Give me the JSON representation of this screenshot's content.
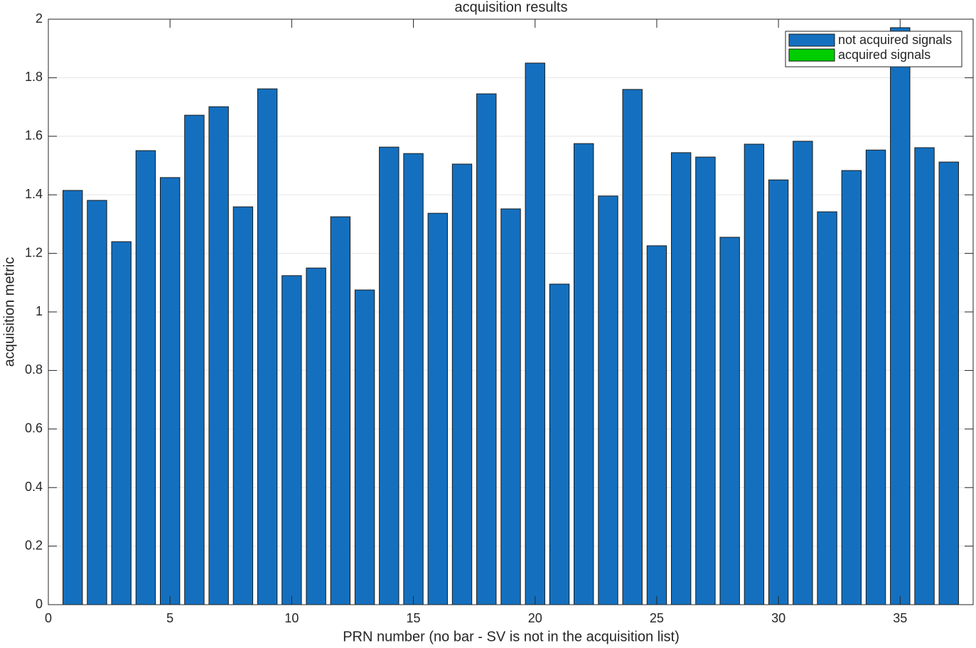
{
  "chart_data": {
    "type": "bar",
    "title": "acquisition results",
    "x_label": "PRN number (no bar - SV is not in the acquisition list)",
    "y_label": "acquisition metric",
    "x": [
      1,
      2,
      3,
      4,
      5,
      6,
      7,
      8,
      9,
      10,
      11,
      12,
      13,
      14,
      15,
      16,
      17,
      18,
      19,
      20,
      21,
      22,
      23,
      24,
      25,
      26,
      27,
      28,
      29,
      30,
      31,
      32,
      33,
      34,
      35,
      36,
      37
    ],
    "series": [
      {
        "name": "not acquired signals",
        "color": "#1470bf",
        "values": [
          1.415,
          1.381,
          1.24,
          1.551,
          1.459,
          1.672,
          1.701,
          1.359,
          1.762,
          1.124,
          1.15,
          1.325,
          1.075,
          1.563,
          1.541,
          1.337,
          1.505,
          1.745,
          1.352,
          1.85,
          1.095,
          1.575,
          1.396,
          1.76,
          1.226,
          1.544,
          1.529,
          1.255,
          1.573,
          1.451,
          1.583,
          1.342,
          1.483,
          1.553,
          1.971,
          1.561,
          1.512
        ]
      },
      {
        "name": "acquired signals",
        "color": "#00cc00",
        "values": [
          null,
          null,
          null,
          null,
          null,
          null,
          null,
          null,
          null,
          null,
          null,
          null,
          null,
          null,
          null,
          null,
          null,
          null,
          null,
          null,
          null,
          null,
          null,
          null,
          null,
          null,
          null,
          null,
          null,
          null,
          null,
          null,
          null,
          null,
          null,
          null,
          null
        ]
      }
    ],
    "xlim": [
      0,
      38
    ],
    "xticks": [
      0,
      5,
      10,
      15,
      20,
      25,
      30,
      35
    ],
    "ylim": [
      0,
      2
    ],
    "yticks": [
      0,
      0.2,
      0.4,
      0.6,
      0.8,
      1,
      1.2,
      1.4,
      1.6,
      1.8,
      2
    ],
    "grid": true,
    "legend": "top-right"
  }
}
